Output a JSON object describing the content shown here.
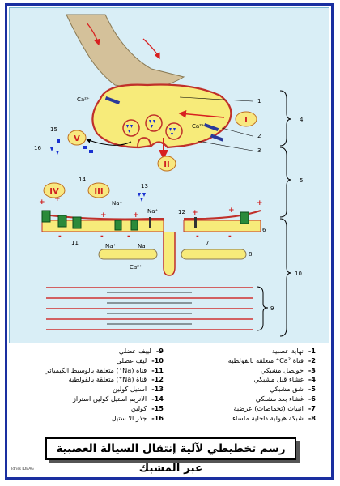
{
  "legend": {
    "items": [
      {
        "num": "-1",
        "text": "نهاية عصبية"
      },
      {
        "num": "-2",
        "text": "قناة Ca²⁺ متعلقة بالفولطية"
      },
      {
        "num": "-3",
        "text": "حويصل مشبكي"
      },
      {
        "num": "-4",
        "text": "غشاء قبل مشبكي"
      },
      {
        "num": "-5",
        "text": "شق مشبكي"
      },
      {
        "num": "-6",
        "text": "غشاء بعد مشبكي"
      },
      {
        "num": "-7",
        "text": "انبيات (تخماصات) عرضية"
      },
      {
        "num": "-8",
        "text": "شبكة هيولية داخلية ملساء"
      },
      {
        "num": "-9",
        "text": "لييف عضلي"
      },
      {
        "num": "-10",
        "text": "ليف عضلي"
      },
      {
        "num": "-11",
        "text": "قناة (Na⁺) متعلقة بالوسيط الكيميائي"
      },
      {
        "num": "-12",
        "text": "قناة (Na⁺) متعلقة بالفولطية"
      },
      {
        "num": "-13",
        "text": "استيل كولين"
      },
      {
        "num": "-14",
        "text": "الانزيم استيل كولين استراز"
      },
      {
        "num": "-15",
        "text": "كولين"
      },
      {
        "num": "-16",
        "text": "جذر الا ستيل"
      }
    ]
  },
  "title": "رسم تخطيطي لآلية إنتقال السيالة العصبية عبر المشبك",
  "credit": "Idriss IDBAG",
  "diagram": {
    "numbers": {
      "n1": "1",
      "n2": "2",
      "n3": "3",
      "n4": "4",
      "n5": "5",
      "n6": "6",
      "n7": "7",
      "n8": "8",
      "n9": "9",
      "n10": "10",
      "n11": "11",
      "n12": "12",
      "n13": "13",
      "n14": "14",
      "n15": "15",
      "n16": "16"
    },
    "steps": {
      "I": "I",
      "II": "II",
      "III": "III",
      "IV": "IV",
      "V": "V"
    },
    "ions": {
      "ca_top": "Ca²⁺",
      "ca_inner": "Ca²⁺",
      "na_a": "Na⁺",
      "na_b": "Na⁺",
      "na_c": "Na⁺",
      "na_d": "Na⁺",
      "ca_bottom": "Ca²⁺"
    },
    "colors": {
      "axon": "#d4c19a",
      "terminal": "#f7eb7a",
      "membrane": "#c0302a",
      "myofibril": "#d03030",
      "ach": "#1830d0",
      "arrow": "#e02020",
      "step_fill": "#f8e880",
      "step_text": "#d02020"
    }
  }
}
